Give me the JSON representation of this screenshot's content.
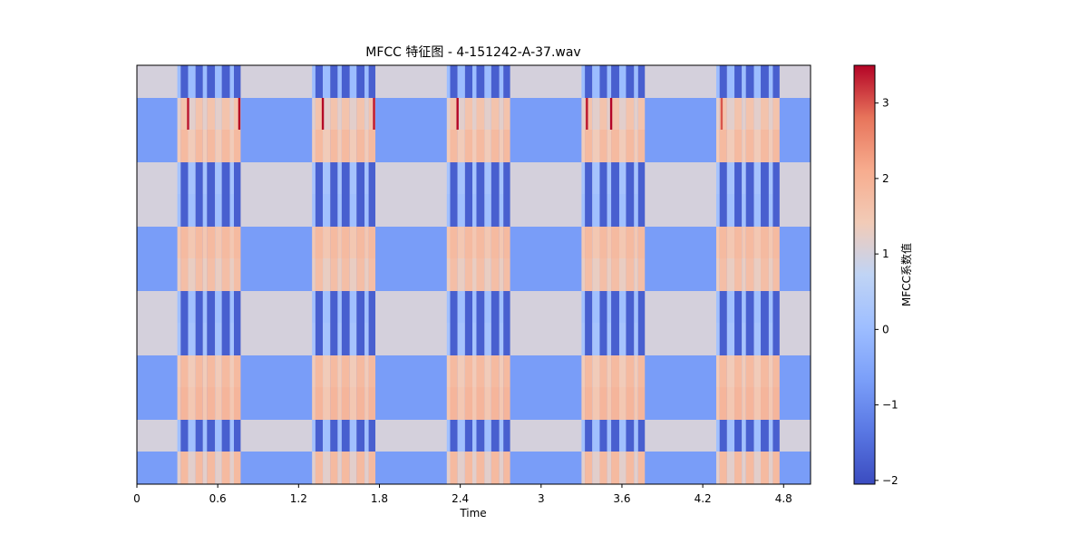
{
  "chart_data": {
    "type": "heatmap",
    "title": "MFCC 特征图 - 4-151242-A-37.wav",
    "xlabel": "Time",
    "ylabel": "",
    "xlim": [
      0,
      5.0
    ],
    "x_ticks": [
      0,
      0.6,
      1.2,
      1.8,
      2.4,
      3.0,
      3.6,
      4.2,
      4.8
    ],
    "x_tick_labels": [
      "0",
      "0.6",
      "1.2",
      "1.8",
      "2.4",
      "3",
      "3.6",
      "4.2",
      "4.8"
    ],
    "y_tick_labels": [],
    "colormap": "coolwarm",
    "colorbar": {
      "label": "MFCC系数值",
      "range": [
        -2.05,
        3.5
      ],
      "ticks": [
        -2,
        -1,
        0,
        1,
        2,
        3
      ],
      "tick_labels": [
        "−2",
        "−1",
        "0",
        "1",
        "2",
        "3"
      ]
    },
    "n_coefficients": 13,
    "row_values_background": [
      1.0,
      -0.7,
      -0.7,
      1.0,
      1.0,
      -0.7,
      -0.7,
      1.0,
      1.0,
      -0.7,
      -0.7,
      1.0,
      -0.7
    ],
    "row_values_event_a": [
      -1.75,
      1.6,
      1.8,
      -1.75,
      -1.75,
      1.8,
      1.7,
      -1.75,
      -1.75,
      1.8,
      1.9,
      -1.75,
      1.8
    ],
    "row_values_event_b": [
      0.0,
      1.2,
      1.4,
      0.2,
      0.1,
      1.5,
      1.3,
      0.1,
      0.2,
      1.4,
      1.5,
      0.1,
      1.2
    ],
    "events": [
      {
        "start": 0.3,
        "end": 0.77
      },
      {
        "start": 1.3,
        "end": 1.77
      },
      {
        "start": 2.3,
        "end": 2.77
      },
      {
        "start": 3.3,
        "end": 3.77
      },
      {
        "start": 4.3,
        "end": 4.77
      }
    ],
    "event_pattern": [
      {
        "offset": 0.0,
        "width": 0.025,
        "kind": "b"
      },
      {
        "offset": 0.025,
        "width": 0.055,
        "kind": "a"
      },
      {
        "offset": 0.08,
        "width": 0.055,
        "kind": "b"
      },
      {
        "offset": 0.135,
        "width": 0.055,
        "kind": "a"
      },
      {
        "offset": 0.19,
        "width": 0.03,
        "kind": "b"
      },
      {
        "offset": 0.22,
        "width": 0.06,
        "kind": "a"
      },
      {
        "offset": 0.28,
        "width": 0.05,
        "kind": "b"
      },
      {
        "offset": 0.33,
        "width": 0.06,
        "kind": "a"
      },
      {
        "offset": 0.39,
        "width": 0.03,
        "kind": "b"
      },
      {
        "offset": 0.42,
        "width": 0.05,
        "kind": "a"
      }
    ],
    "peaks": [
      {
        "time": 0.38,
        "row": 1,
        "value": 3.4
      },
      {
        "time": 0.76,
        "row": 1,
        "value": 3.5
      },
      {
        "time": 1.38,
        "row": 1,
        "value": 3.5
      },
      {
        "time": 1.76,
        "row": 1,
        "value": 3.4
      },
      {
        "time": 2.38,
        "row": 1,
        "value": 3.5
      },
      {
        "time": 3.34,
        "row": 1,
        "value": 3.4
      },
      {
        "time": 3.52,
        "row": 1,
        "value": 3.5
      },
      {
        "time": 4.34,
        "row": 1,
        "value": 3.0
      }
    ]
  }
}
